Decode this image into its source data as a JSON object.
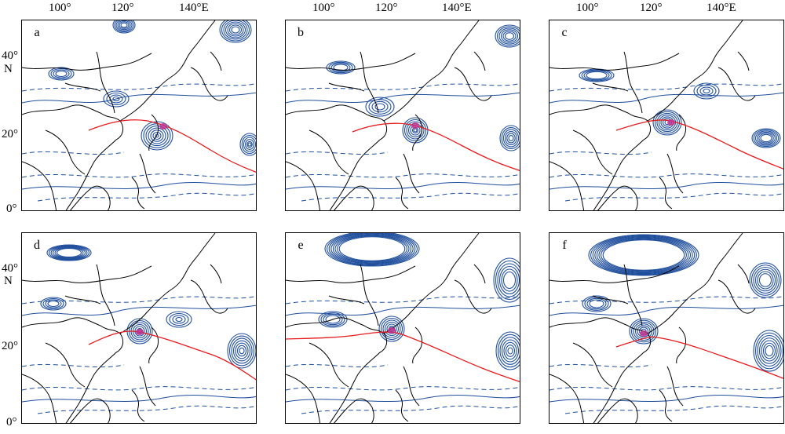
{
  "axes": {
    "lon_ticks": [
      "100°",
      "120°",
      "140°E"
    ],
    "lat_top": {
      "d40": "40°",
      "N": "N",
      "d20": "20°",
      "d0": "0°"
    },
    "lat_bottom": {
      "d40": "40°",
      "N": "N",
      "d20": "20°",
      "d0": "0°"
    }
  },
  "panels": [
    {
      "id": "a",
      "label": "a"
    },
    {
      "id": "b",
      "label": "b"
    },
    {
      "id": "c",
      "label": "c"
    },
    {
      "id": "d",
      "label": "d"
    },
    {
      "id": "e",
      "label": "e"
    },
    {
      "id": "f",
      "label": "f"
    }
  ],
  "colors": {
    "contour": "#1f4e9c",
    "track": "#e41a1c",
    "core": "#c2338f",
    "coast": "#000000"
  }
}
